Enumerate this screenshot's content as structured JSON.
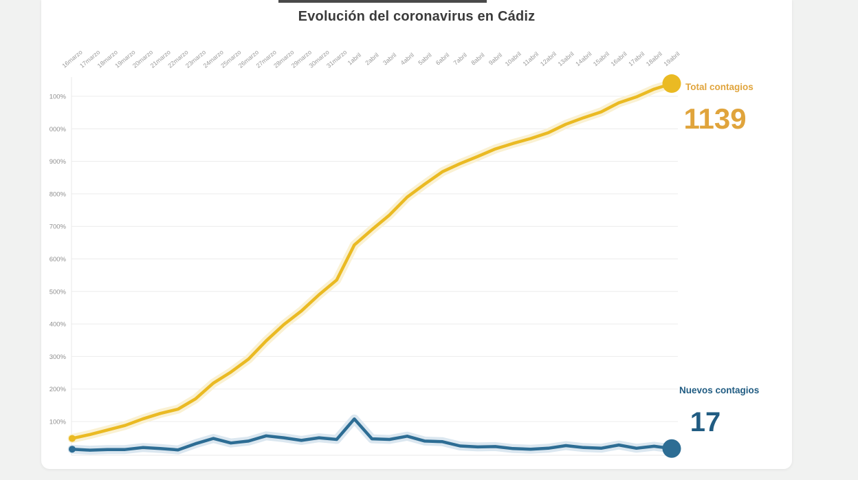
{
  "top_edge_bar": {
    "color": "#4a4a4a"
  },
  "chart_data": {
    "type": "line",
    "title": "Evolución del coronavirus en Cádiz",
    "x_labels": [
      "16marzo",
      "17marzo",
      "18marzo",
      "19marzo",
      "20marzo",
      "21marzo",
      "22marzo",
      "23marzo",
      "24marzo",
      "25marzo",
      "26marzo",
      "27marzo",
      "28marzo",
      "29marzo",
      "30marzo",
      "31marzo",
      "1abril",
      "2abril",
      "3abril",
      "4abril",
      "5abril",
      "6abril",
      "7abril",
      "8abril",
      "9abril",
      "10abril",
      "11abril",
      "12abril",
      "13abril",
      "14abril",
      "15abril",
      "16abril",
      "17abril",
      "18abril",
      "19abril"
    ],
    "y_ticks": [
      {
        "value": 100,
        "label": "100%"
      },
      {
        "value": 200,
        "label": "200%"
      },
      {
        "value": 300,
        "label": "300%"
      },
      {
        "value": 400,
        "label": "400%"
      },
      {
        "value": 500,
        "label": "500%"
      },
      {
        "value": 600,
        "label": "600%"
      },
      {
        "value": 700,
        "label": "700%"
      },
      {
        "value": 800,
        "label": "800%"
      },
      {
        "value": 900,
        "label": "900%"
      },
      {
        "value": 1000,
        "label": "000%"
      },
      {
        "value": 1100,
        "label": "100%"
      }
    ],
    "ylim": [
      0,
      1160
    ],
    "grid": true,
    "legend_position": "right",
    "axis_label_color": "#9a9a9a",
    "grid_color": "#ececec",
    "series": [
      {
        "name": "Total contagios",
        "color": "#eaba23",
        "glow_color": "#faf1d2",
        "text_color": "#e0a43c",
        "final_value": 1139,
        "values": [
          48,
          60,
          74,
          88,
          108,
          125,
          138,
          170,
          218,
          252,
          292,
          348,
          398,
          440,
          490,
          535,
          643,
          690,
          735,
          790,
          830,
          868,
          893,
          915,
          938,
          955,
          970,
          988,
          1014,
          1034,
          1052,
          1080,
          1098,
          1122,
          1139
        ]
      },
      {
        "name": "Nuevos contagios",
        "color": "#2d6d94",
        "glow_color": "#dbe7f0",
        "text_color": "#215c82",
        "final_value": 17,
        "values": [
          15,
          12,
          14,
          14,
          20,
          17,
          13,
          32,
          48,
          34,
          40,
          56,
          50,
          42,
          50,
          45,
          108,
          47,
          45,
          55,
          40,
          38,
          25,
          22,
          23,
          17,
          15,
          18,
          26,
          20,
          18,
          28,
          18,
          24,
          17
        ]
      }
    ]
  }
}
